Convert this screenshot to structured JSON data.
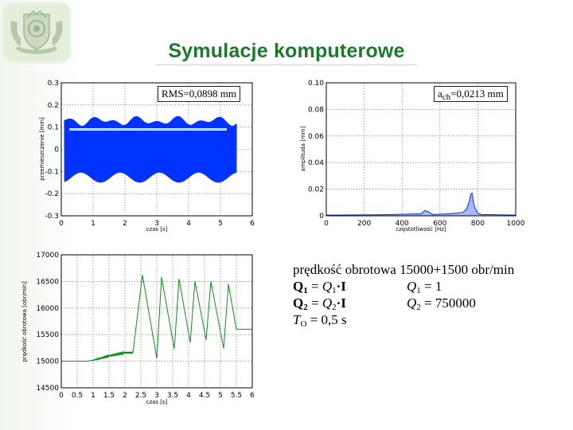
{
  "slide": {
    "title": "Symulacje komputerowe",
    "colors": {
      "title": "#1a7a2a",
      "plot_blue": "#0033ff",
      "plot_green": "#138a1c"
    }
  },
  "logo": {
    "icon": "university-crest-icon"
  },
  "info": {
    "speed_line": "prędkość obrotowa 15000+1500 obr/min",
    "q1_left": {
      "b1": "Q",
      "sub1": "1",
      "mid": " = ",
      "i2": "Q",
      "sub2": "1",
      "tail": "·I"
    },
    "q1_right": {
      "i": "Q",
      "sub": "1",
      "tail": " = 1"
    },
    "q2_left": {
      "b1": "Q",
      "sub1": "2",
      "mid": " = ",
      "i2": "Q",
      "sub2": "2",
      "tail": "·I"
    },
    "q2_right": {
      "i": "Q",
      "sub": "2",
      "tail": " = 750000"
    },
    "to_line": {
      "i": "T",
      "sub": "O",
      "tail": " = 0,5 s"
    }
  },
  "chart_data": [
    {
      "type": "line",
      "xlabel": "czas [s]",
      "ylabel": "przemieszczenie [mm]",
      "xlim": [
        0,
        6
      ],
      "ylim": [
        -0.3,
        0.3
      ],
      "xticks": [
        "0",
        "1",
        "2",
        "3",
        "4",
        "5",
        "6"
      ],
      "yticks": [
        "0.3",
        "0.2",
        "0.1",
        "0",
        "-0.1",
        "-0.2",
        "-0.3"
      ],
      "grid": true,
      "annotation": {
        "text": "RMS=0,0898  mm"
      },
      "series": [
        {
          "color": "#0033ff",
          "kind": "oscillation",
          "x_range": [
            0.1,
            5.5
          ],
          "amplitude_max": 0.15,
          "amplitude_min": -0.15
        },
        {
          "color": "#aacca8",
          "kind": "rms-level",
          "x_range": [
            0.25,
            5.2
          ],
          "y": 0.0898
        }
      ]
    },
    {
      "type": "line",
      "xlabel": "częstotliwość [Hz]",
      "ylabel": "amplituda [mm]",
      "xlim": [
        0,
        1000
      ],
      "ylim": [
        0,
        0.1
      ],
      "xticks": [
        "0",
        "200",
        "400",
        "600",
        "800",
        "1000"
      ],
      "yticks": [
        "0.10",
        "0.08",
        "0.06",
        "0.04",
        "0.02",
        "0"
      ],
      "grid": true,
      "annotation": {
        "text_base": "a",
        "text_sub": "ch",
        "text_rest": "=0,0213 mm"
      },
      "series": [
        {
          "color": "#0033ff",
          "kind": "spectrum",
          "points": [
            [
              0,
              0.0005
            ],
            [
              300,
              0.0008
            ],
            [
              500,
              0.0015
            ],
            [
              520,
              0.004
            ],
            [
              540,
              0.003
            ],
            [
              560,
              0.001
            ],
            [
              650,
              0.0015
            ],
            [
              720,
              0.0025
            ],
            [
              740,
              0.005
            ],
            [
              755,
              0.011
            ],
            [
              762,
              0.016
            ],
            [
              770,
              0.017
            ],
            [
              776,
              0.011
            ],
            [
              784,
              0.006
            ],
            [
              800,
              0.002
            ],
            [
              820,
              0.001
            ],
            [
              1000,
              0.0005
            ]
          ]
        }
      ]
    },
    {
      "type": "line",
      "xlabel": "czas [s]",
      "ylabel": "prędkość obrotowa [obr/min]",
      "xlim": [
        0,
        6
      ],
      "ylim": [
        14500,
        17000
      ],
      "xticks": [
        "0",
        "0.5",
        "1",
        "1.5",
        "2",
        "2.5",
        "3",
        "3.5",
        "4",
        "4.5",
        "5",
        "5.5",
        "6"
      ],
      "yticks": [
        "17000",
        "16500",
        "16000",
        "15500",
        "15000",
        "14500"
      ],
      "grid": true,
      "series": [
        {
          "color": "#138a1c",
          "kind": "speed",
          "points": [
            [
              0,
              15000
            ],
            [
              0.8,
              15000
            ],
            [
              1.0,
              15020
            ],
            [
              1.2,
              15050
            ],
            [
              1.5,
              15100
            ],
            [
              2.0,
              15160
            ],
            [
              2.25,
              15160
            ],
            [
              2.55,
              16620
            ],
            [
              3.0,
              15050
            ],
            [
              3.15,
              16580
            ],
            [
              3.55,
              15230
            ],
            [
              3.7,
              16550
            ],
            [
              4.05,
              15350
            ],
            [
              4.2,
              16500
            ],
            [
              4.55,
              15400
            ],
            [
              4.7,
              16500
            ],
            [
              5.1,
              15240
            ],
            [
              5.25,
              16450
            ],
            [
              5.5,
              15600
            ],
            [
              6.0,
              15600
            ]
          ]
        }
      ]
    }
  ]
}
